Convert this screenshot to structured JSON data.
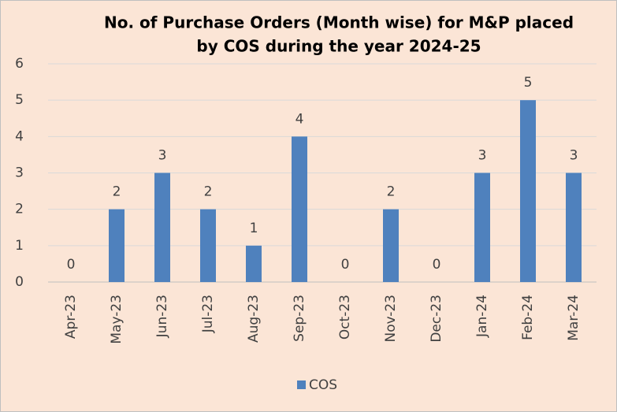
{
  "chart_data": {
    "type": "bar",
    "title": [
      "No. of Purchase Orders (Month wise) for M&P placed",
      "by COS during the year 2024-25"
    ],
    "categories": [
      "Apr-23",
      "May-23",
      "Jun-23",
      "Jul-23",
      "Aug-23",
      "Sep-23",
      "Oct-23",
      "Nov-23",
      "Dec-23",
      "Jan-24",
      "Feb-24",
      "Mar-24"
    ],
    "series": [
      {
        "name": "COS",
        "color": "#4f81bd",
        "values": [
          0,
          2,
          3,
          2,
          1,
          4,
          0,
          2,
          0,
          3,
          5,
          3
        ]
      }
    ],
    "ylim": [
      0,
      6
    ],
    "yticks": [
      0,
      1,
      2,
      3,
      4,
      5,
      6
    ],
    "grid": true,
    "legend": "bottom"
  }
}
